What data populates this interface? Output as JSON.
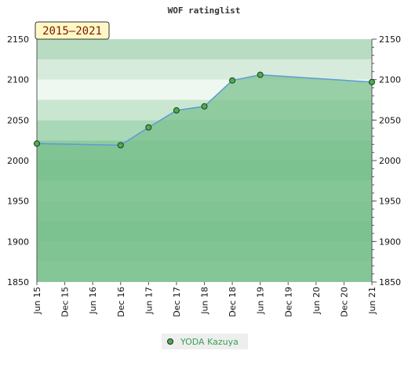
{
  "chart_data": {
    "type": "area",
    "title": "WOF ratinglist",
    "range_badge": "2015–2021",
    "xlabel": "",
    "ylabel": "",
    "categories": [
      "Jun 15",
      "Dec 15",
      "Jun 16",
      "Dec 16",
      "Jun 17",
      "Dec 17",
      "Jun 18",
      "Dec 18",
      "Jun 19",
      "Dec 19",
      "Jun 20",
      "Dec 20",
      "Jun 21"
    ],
    "ylim": [
      1850,
      2150
    ],
    "yticks": [
      1850,
      1900,
      1950,
      2000,
      2050,
      2100,
      2150
    ],
    "y_axis_sides": "left-and-right",
    "series": [
      {
        "name": "YODA Kazuya",
        "points": [
          {
            "x": 0,
            "y": 2021
          },
          {
            "x": 3,
            "y": 2019
          },
          {
            "x": 4,
            "y": 2041
          },
          {
            "x": 5,
            "y": 2062
          },
          {
            "x": 6,
            "y": 2067
          },
          {
            "x": 7,
            "y": 2099
          },
          {
            "x": 8,
            "y": 2106
          },
          {
            "x": 12,
            "y": 2097
          }
        ],
        "line_color": "#5b9bd5",
        "fill_color": "#7cc28f",
        "marker_color": "#4caf50"
      }
    ],
    "legend": {
      "position": "bottom-center"
    },
    "grid": true
  },
  "colors": {
    "band_light": "#d9ecdf",
    "band_mid": "#a7d6b3",
    "band_dark": "#79c08f",
    "badge_fill": "#fff8c6",
    "badge_border": "#333333"
  }
}
